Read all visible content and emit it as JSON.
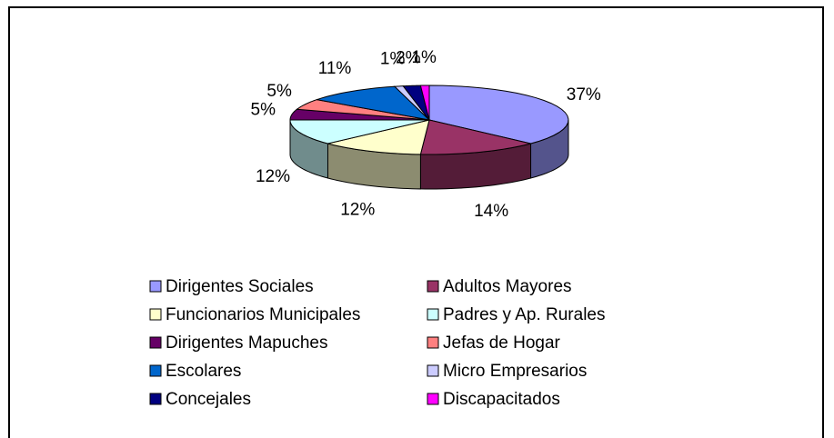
{
  "chart_data": {
    "type": "pie",
    "categories": [
      "Dirigentes Sociales",
      "Adultos Mayores",
      "Funcionarios Municipales",
      "Padres y Ap. Rurales",
      "Dirigentes Mapuches",
      "Jefas de Hogar",
      "Escolares",
      "Micro Empresarios",
      "Concejales",
      "Discapacitados"
    ],
    "values": [
      37,
      14,
      12,
      12,
      5,
      5,
      11,
      1,
      2,
      1
    ],
    "value_labels": [
      "37%",
      "14%",
      "12%",
      "12%",
      "5%",
      "5%",
      "11%",
      "1%",
      "2%",
      "1%"
    ],
    "colors": [
      "#9999ff",
      "#993366",
      "#ffffcc",
      "#ccffff",
      "#660066",
      "#ff8080",
      "#0066cc",
      "#ccccff",
      "#000080",
      "#ff00ff"
    ],
    "legend": "bottom"
  }
}
